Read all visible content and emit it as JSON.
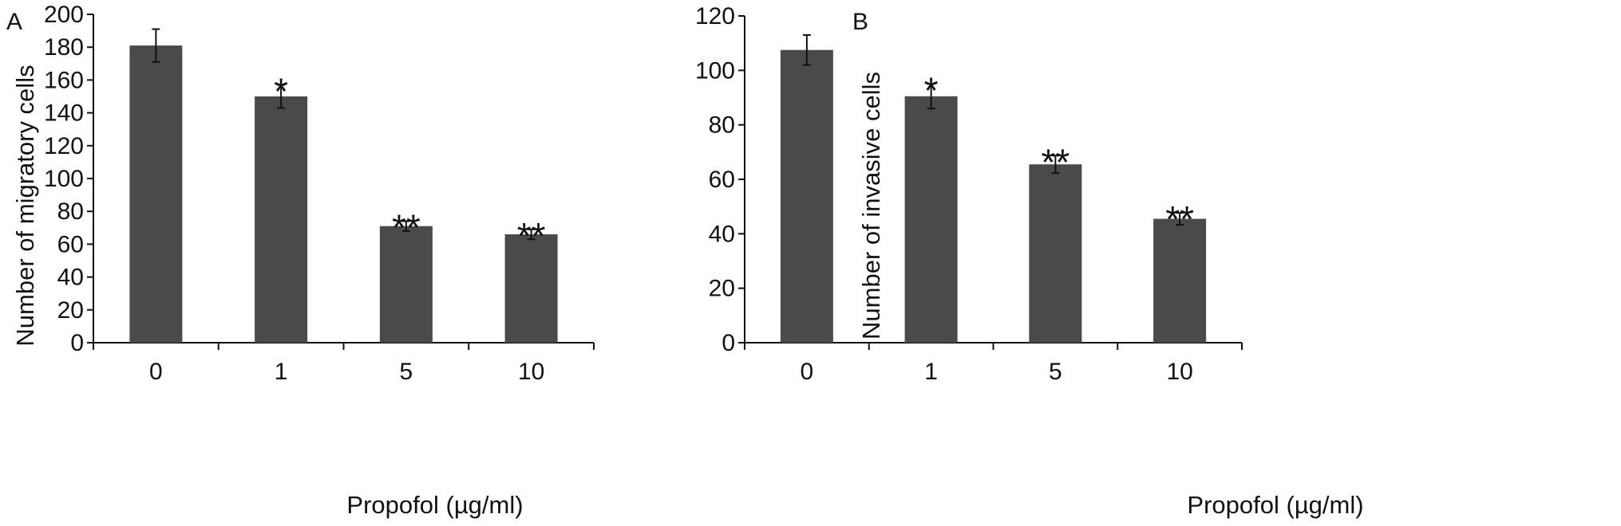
{
  "colors": {
    "bar": "#4a4a4a",
    "axis": "#111111"
  },
  "chart_data": [
    {
      "panel": "A",
      "type": "bar",
      "xlabel": "Propofol (µg/ml)",
      "ylabel": "Number of migratory cells",
      "ylim": [
        0,
        200
      ],
      "yticks": [
        0,
        20,
        40,
        60,
        80,
        100,
        120,
        140,
        160,
        180,
        200
      ],
      "categories": [
        "0",
        "1",
        "5",
        "10"
      ],
      "values": [
        181,
        150,
        71,
        66
      ],
      "errors": [
        10,
        7,
        3,
        3
      ],
      "significance": [
        "",
        "*",
        "**",
        "**"
      ],
      "grid": false
    },
    {
      "panel": "B",
      "type": "bar",
      "xlabel": "Propofol (µg/ml)",
      "ylabel": "Number of invasive cells",
      "ylim": [
        0,
        120
      ],
      "yticks": [
        0,
        20,
        40,
        60,
        80,
        100,
        120
      ],
      "categories": [
        "0",
        "1",
        "5",
        "10"
      ],
      "values": [
        107.5,
        90.5,
        65.5,
        45.5
      ],
      "errors": [
        5.5,
        4.5,
        3.2,
        2.2
      ],
      "significance": [
        "",
        "*",
        "**",
        "**"
      ],
      "grid": false
    }
  ]
}
